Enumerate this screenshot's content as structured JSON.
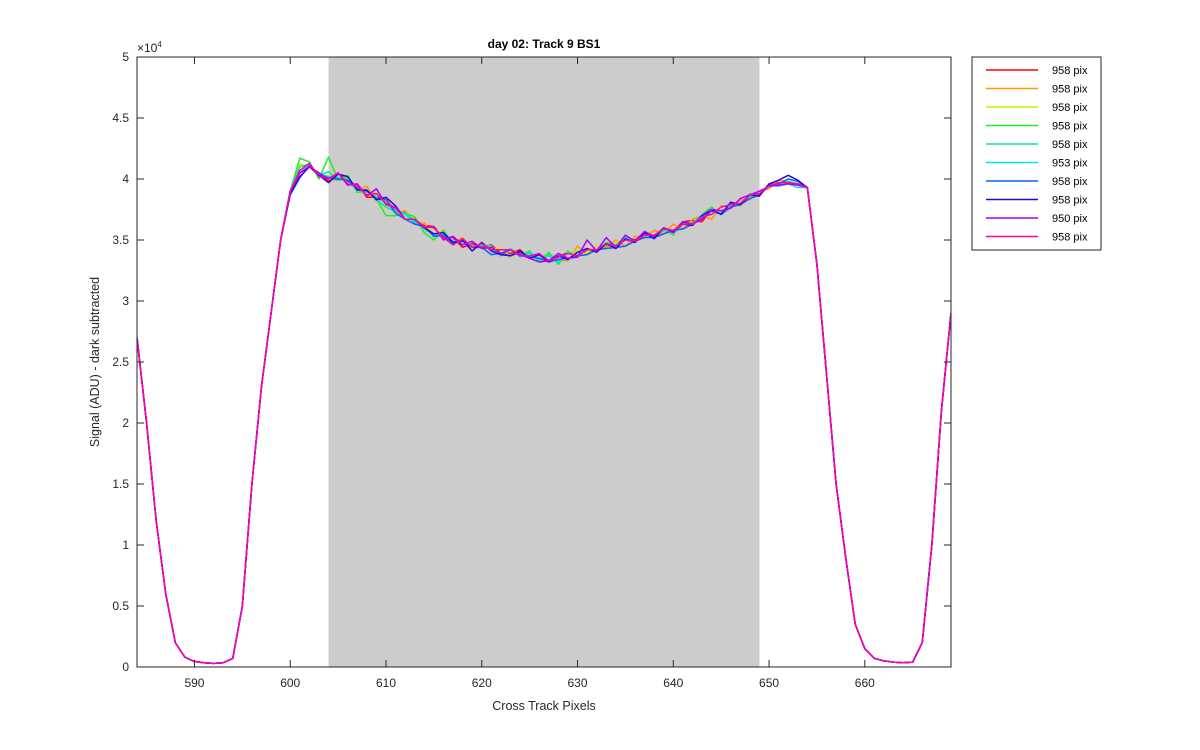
{
  "chart_data": {
    "type": "line",
    "title": "day 02: Track 9  BS1",
    "xlabel": "Cross Track Pixels",
    "ylabel": "Signal (ADU) - dark subtracted",
    "y_exponent_label": "×10",
    "y_exponent_power": "4",
    "xlim": [
      584,
      669
    ],
    "ylim": [
      0,
      50000
    ],
    "x_ticks": [
      590,
      600,
      610,
      620,
      630,
      640,
      650,
      660
    ],
    "x_tick_labels": [
      "590",
      "600",
      "610",
      "620",
      "630",
      "640",
      "650",
      "660"
    ],
    "y_ticks": [
      0,
      5000,
      10000,
      15000,
      20000,
      25000,
      30000,
      35000,
      40000,
      45000,
      50000
    ],
    "y_tick_labels": [
      "0",
      "0.5",
      "1",
      "1.5",
      "2",
      "2.5",
      "3",
      "3.5",
      "4",
      "4.5",
      "5"
    ],
    "grid": false,
    "legend_position": "outside-top-right",
    "shaded_region": {
      "x_start": 604,
      "x_end": 649,
      "color": "#cccccc"
    },
    "base_x": [
      584,
      585,
      586,
      587,
      588,
      589,
      590,
      591,
      592,
      593,
      594,
      595,
      596,
      597,
      598,
      599,
      600,
      601,
      602,
      603,
      604,
      605,
      606,
      607,
      608,
      609,
      610,
      611,
      612,
      613,
      614,
      615,
      616,
      617,
      618,
      619,
      620,
      621,
      622,
      623,
      624,
      625,
      626,
      627,
      628,
      629,
      630,
      631,
      632,
      633,
      634,
      635,
      636,
      637,
      638,
      639,
      640,
      641,
      642,
      643,
      644,
      645,
      646,
      647,
      648,
      649,
      650,
      651,
      652,
      653,
      654,
      655,
      656,
      657,
      658,
      659,
      660,
      661,
      662,
      663,
      664,
      665,
      666,
      667,
      668,
      669
    ],
    "base_y": [
      27000,
      20000,
      12000,
      6000,
      2000,
      800,
      450,
      350,
      300,
      350,
      700,
      5000,
      15000,
      23000,
      29000,
      35000,
      39000,
      40500,
      41000,
      40500,
      40000,
      40200,
      39800,
      39300,
      38800,
      38600,
      38200,
      37500,
      37000,
      36500,
      36200,
      35800,
      35300,
      35000,
      34800,
      34600,
      34500,
      34300,
      34100,
      34000,
      33900,
      33800,
      33600,
      33500,
      33500,
      33700,
      33900,
      34100,
      34300,
      34500,
      34700,
      34900,
      35100,
      35300,
      35500,
      35700,
      35900,
      36200,
      36500,
      36800,
      37200,
      37500,
      37800,
      38100,
      38500,
      38900,
      39300,
      39700,
      39800,
      39600,
      39300,
      33000,
      24000,
      15000,
      9000,
      3500,
      1500,
      700,
      500,
      400,
      350,
      400,
      2000,
      10000,
      21000,
      29000
    ],
    "series": [
      {
        "name": "958 pix",
        "color": "#ff0000",
        "values": [
          0,
          0,
          0,
          0,
          0,
          0,
          0,
          0,
          0,
          0,
          0,
          0,
          0,
          0,
          0,
          0,
          0,
          0,
          0,
          0,
          -200,
          300,
          0,
          200,
          -300,
          -100,
          200,
          -200,
          300,
          -100,
          0,
          300,
          -100,
          200,
          -400,
          100,
          -100,
          300,
          -200,
          -100,
          300,
          -300,
          200,
          -200,
          100,
          300,
          -300,
          200,
          -200,
          100,
          -200,
          300,
          -100,
          200,
          -300,
          100,
          -200,
          300,
          100,
          -300,
          300,
          -200,
          100,
          -100,
          100,
          -200,
          200,
          0,
          -100,
          0,
          0,
          0,
          0,
          0,
          0,
          0,
          0,
          0,
          0,
          0,
          0,
          0,
          0,
          0,
          0,
          0
        ]
      },
      {
        "name": "958 pix",
        "color": "#ff9900",
        "values": [
          0,
          0,
          0,
          0,
          0,
          0,
          0,
          0,
          0,
          0,
          0,
          0,
          0,
          0,
          0,
          0,
          0,
          0,
          0,
          0,
          0,
          -300,
          400,
          -200,
          600,
          -400,
          200,
          -300,
          400,
          -200,
          200,
          -500,
          300,
          -200,
          400,
          -300,
          100,
          200,
          -400,
          300,
          -100,
          200,
          -300,
          400,
          -200,
          -400,
          600,
          -300,
          200,
          -100,
          300,
          -400,
          200,
          -100,
          300,
          -200,
          400,
          -300,
          200,
          200,
          -500,
          300,
          -100,
          200,
          -200,
          100,
          -100,
          200,
          0,
          0,
          0,
          0,
          0,
          0,
          0,
          0,
          0,
          0,
          0,
          0,
          0,
          0,
          0,
          0,
          0,
          0
        ]
      },
      {
        "name": "958 pix",
        "color": "#ccee00",
        "values": [
          0,
          0,
          0,
          0,
          0,
          0,
          0,
          0,
          0,
          0,
          0,
          0,
          0,
          0,
          0,
          0,
          0,
          700,
          100,
          -300,
          300,
          -200,
          200,
          100,
          -200,
          300,
          -400,
          200,
          -300,
          400,
          -200,
          100,
          300,
          -200,
          100,
          -300,
          200,
          -100,
          300,
          -400,
          100,
          -200,
          300,
          -300,
          200,
          -200,
          300,
          -100,
          200,
          -300,
          100,
          200,
          -300,
          200,
          -100,
          300,
          -200,
          100,
          -300,
          200,
          300,
          -200,
          100,
          -200,
          200,
          -100,
          100,
          -100,
          0,
          0,
          0,
          0,
          0,
          0,
          0,
          0,
          0,
          0,
          0,
          0,
          0,
          0,
          0,
          0,
          0,
          0
        ]
      },
      {
        "name": "958 pix",
        "color": "#22ee22",
        "values": [
          0,
          0,
          0,
          0,
          0,
          0,
          0,
          0,
          0,
          0,
          0,
          0,
          0,
          0,
          0,
          0,
          0,
          1200,
          400,
          -500,
          1800,
          -300,
          500,
          -400,
          200,
          -200,
          -1200,
          -500,
          200,
          400,
          -600,
          -800,
          500,
          -300,
          300,
          -200,
          100,
          200,
          -400,
          300,
          -200,
          300,
          -400,
          500,
          -500,
          400,
          -300,
          200,
          -200,
          300,
          -100,
          200,
          -300,
          400,
          -300,
          200,
          -500,
          300,
          -200,
          300,
          500,
          -400,
          200,
          -300,
          300,
          -200,
          100,
          -100,
          0,
          0,
          0,
          0,
          0,
          0,
          0,
          0,
          0,
          0,
          0,
          0,
          0,
          0,
          0,
          0,
          0,
          0
        ]
      },
      {
        "name": "958 pix",
        "color": "#00ee88",
        "values": [
          0,
          0,
          0,
          0,
          0,
          0,
          0,
          0,
          0,
          0,
          0,
          0,
          0,
          0,
          0,
          0,
          0,
          500,
          200,
          -200,
          600,
          -300,
          300,
          -200,
          200,
          -300,
          -500,
          -200,
          200,
          100,
          -300,
          -400,
          300,
          -200,
          200,
          -100,
          100,
          200,
          -300,
          200,
          -200,
          200,
          -300,
          300,
          -400,
          300,
          -200,
          100,
          -100,
          200,
          -100,
          200,
          -200,
          300,
          -200,
          100,
          -300,
          200,
          -100,
          200,
          300,
          -300,
          100,
          -200,
          200,
          -100,
          100,
          -100,
          0,
          0,
          0,
          0,
          0,
          0,
          0,
          0,
          0,
          0,
          0,
          0,
          0,
          0,
          0,
          0,
          0,
          0
        ]
      },
      {
        "name": "953 pix",
        "color": "#00e5ee",
        "values": [
          0,
          0,
          0,
          0,
          0,
          0,
          0,
          0,
          0,
          0,
          0,
          0,
          0,
          0,
          0,
          0,
          0,
          200,
          100,
          -100,
          200,
          -100,
          100,
          -200,
          200,
          -100,
          -200,
          -100,
          100,
          -100,
          -200,
          -300,
          200,
          -100,
          100,
          -200,
          200,
          -100,
          -200,
          300,
          -300,
          100,
          -200,
          200,
          -300,
          200,
          -100,
          200,
          -200,
          100,
          -100,
          300,
          -200,
          100,
          -200,
          200,
          -300,
          100,
          -200,
          300,
          200,
          -300,
          200,
          -100,
          100,
          -200,
          200,
          -300,
          -200,
          -300,
          0,
          0,
          0,
          0,
          0,
          0,
          0,
          0,
          0,
          0,
          0,
          0,
          0,
          0,
          0,
          0
        ]
      },
      {
        "name": "958 pix",
        "color": "#0066ff",
        "values": [
          0,
          0,
          0,
          0,
          0,
          0,
          0,
          0,
          0,
          0,
          0,
          0,
          0,
          0,
          0,
          0,
          -300,
          -400,
          100,
          -200,
          100,
          -200,
          100,
          -100,
          200,
          -200,
          100,
          -300,
          -300,
          -200,
          -100,
          -500,
          100,
          -300,
          100,
          -200,
          -100,
          -500,
          -200,
          -300,
          100,
          -200,
          -100,
          -300,
          -100,
          -200,
          -200,
          -300,
          -100,
          -200,
          -300,
          -400,
          -200,
          -100,
          -300,
          -200,
          -100,
          -300,
          -200,
          -100,
          200,
          -400,
          -100,
          -200,
          -100,
          -200,
          200,
          -100,
          200,
          200,
          0,
          0,
          0,
          0,
          0,
          0,
          0,
          0,
          0,
          0,
          0,
          0,
          0,
          0,
          0,
          0
        ]
      },
      {
        "name": "958 pix",
        "color": "#3300dd",
        "values": [
          0,
          0,
          0,
          0,
          0,
          0,
          0,
          0,
          0,
          0,
          0,
          0,
          0,
          0,
          0,
          0,
          -200,
          -300,
          0,
          -200,
          -300,
          200,
          400,
          -200,
          300,
          -300,
          300,
          300,
          -300,
          200,
          -200,
          -300,
          300,
          -200,
          200,
          -500,
          300,
          -200,
          -300,
          -300,
          200,
          -300,
          200,
          -300,
          200,
          -300,
          100,
          200,
          -300,
          200,
          -400,
          200,
          -300,
          300,
          -400,
          300,
          -200,
          100,
          -300,
          200,
          300,
          -400,
          300,
          -200,
          200,
          -300,
          300,
          200,
          500,
          300,
          0,
          0,
          0,
          0,
          0,
          0,
          0,
          0,
          0,
          0,
          0,
          0,
          0,
          0,
          0,
          0
        ]
      },
      {
        "name": "950 pix",
        "color": "#aa00ff",
        "values": [
          0,
          0,
          0,
          0,
          0,
          0,
          0,
          0,
          0,
          0,
          0,
          0,
          0,
          0,
          0,
          0,
          0,
          0,
          0,
          0,
          0,
          300,
          -300,
          300,
          -200,
          600,
          -300,
          200,
          -300,
          200,
          -200,
          300,
          -300,
          300,
          -200,
          300,
          -200,
          100,
          -200,
          200,
          -100,
          -300,
          -400,
          -200,
          400,
          -200,
          -300,
          900,
          -200,
          700,
          -300,
          500,
          -200,
          400,
          -200,
          300,
          -300,
          300,
          -200,
          -100,
          300,
          -100,
          -200,
          300,
          200,
          100,
          100,
          -200,
          -200,
          -100,
          0,
          0,
          0,
          0,
          0,
          0,
          0,
          0,
          0,
          0,
          0,
          0,
          0,
          0,
          0,
          0
        ]
      },
      {
        "name": "958 pix",
        "color": "#ff00aa",
        "values": [
          0,
          0,
          0,
          0,
          0,
          0,
          0,
          0,
          0,
          0,
          0,
          0,
          0,
          0,
          0,
          0,
          0,
          200,
          300,
          -300,
          0,
          300,
          -200,
          100,
          -100,
          200,
          -200,
          100,
          -300,
          200,
          -100,
          200,
          -100,
          -400,
          300,
          -200,
          200,
          -100,
          100,
          200,
          -200,
          -100,
          300,
          -200,
          100,
          200,
          -200,
          100,
          -100,
          200,
          -200,
          100,
          -200,
          100,
          -100,
          200,
          -100,
          100,
          -200,
          100,
          -100,
          200,
          100,
          -100,
          200,
          -100,
          100,
          0,
          -100,
          0,
          0,
          0,
          0,
          0,
          0,
          0,
          0,
          0,
          0,
          0,
          0,
          0,
          0,
          0,
          0,
          0
        ]
      }
    ]
  }
}
